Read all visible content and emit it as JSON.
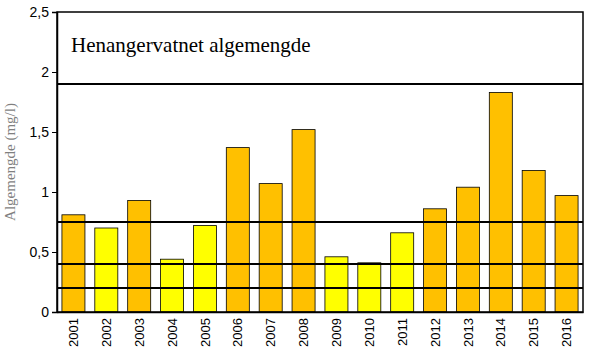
{
  "chart_data": {
    "type": "bar",
    "title": "Henangervatnet algemengde",
    "y_label": "Algemengde (mg/l)",
    "categories": [
      "2001",
      "2002",
      "2003",
      "2004",
      "2005",
      "2006",
      "2007",
      "2008",
      "2009",
      "2010",
      "2011",
      "2012",
      "2013",
      "2014",
      "2015",
      "2016"
    ],
    "values": [
      0.81,
      0.7,
      0.93,
      0.44,
      0.72,
      1.37,
      1.07,
      1.52,
      0.46,
      0.41,
      0.66,
      0.86,
      1.04,
      1.83,
      1.18,
      0.97
    ],
    "colors": [
      "#ffc000",
      "#ffff00",
      "#ffc000",
      "#ffff00",
      "#ffff00",
      "#ffc000",
      "#ffc000",
      "#ffc000",
      "#ffff00",
      "#ffff00",
      "#ffff00",
      "#ffc000",
      "#ffc000",
      "#ffc000",
      "#ffc000",
      "#ffc000"
    ],
    "thresholds": [
      0.2,
      0.4,
      0.75,
      1.9
    ],
    "ylim": [
      0,
      2.5
    ],
    "yticks": [
      0,
      {
        "value": 0.5,
        "label": "0,5"
      },
      1,
      {
        "value": 1.5,
        "label": "1,5"
      },
      2,
      {
        "value": 2.5,
        "label": "2,5"
      }
    ],
    "grid": false
  }
}
